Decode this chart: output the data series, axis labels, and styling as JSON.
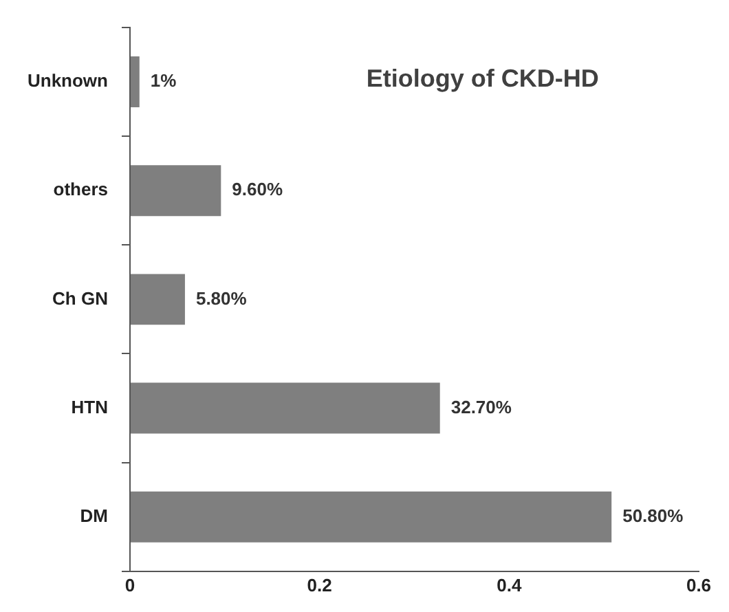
{
  "chart_data": {
    "type": "bar",
    "orientation": "horizontal",
    "title": "Etiology of CKD-HD",
    "categories": [
      "Unknown",
      "others",
      "Ch GN",
      "HTN",
      "DM"
    ],
    "values": [
      0.01,
      0.096,
      0.058,
      0.327,
      0.508
    ],
    "value_labels": [
      "1%",
      "9.60%",
      "5.80%",
      "32.70%",
      "50.80%"
    ],
    "color": "#7f7f7f",
    "xlim": [
      0,
      0.6
    ],
    "xticks": [
      0,
      0.2,
      0.4,
      0.6
    ],
    "grid": false,
    "legend": false
  }
}
